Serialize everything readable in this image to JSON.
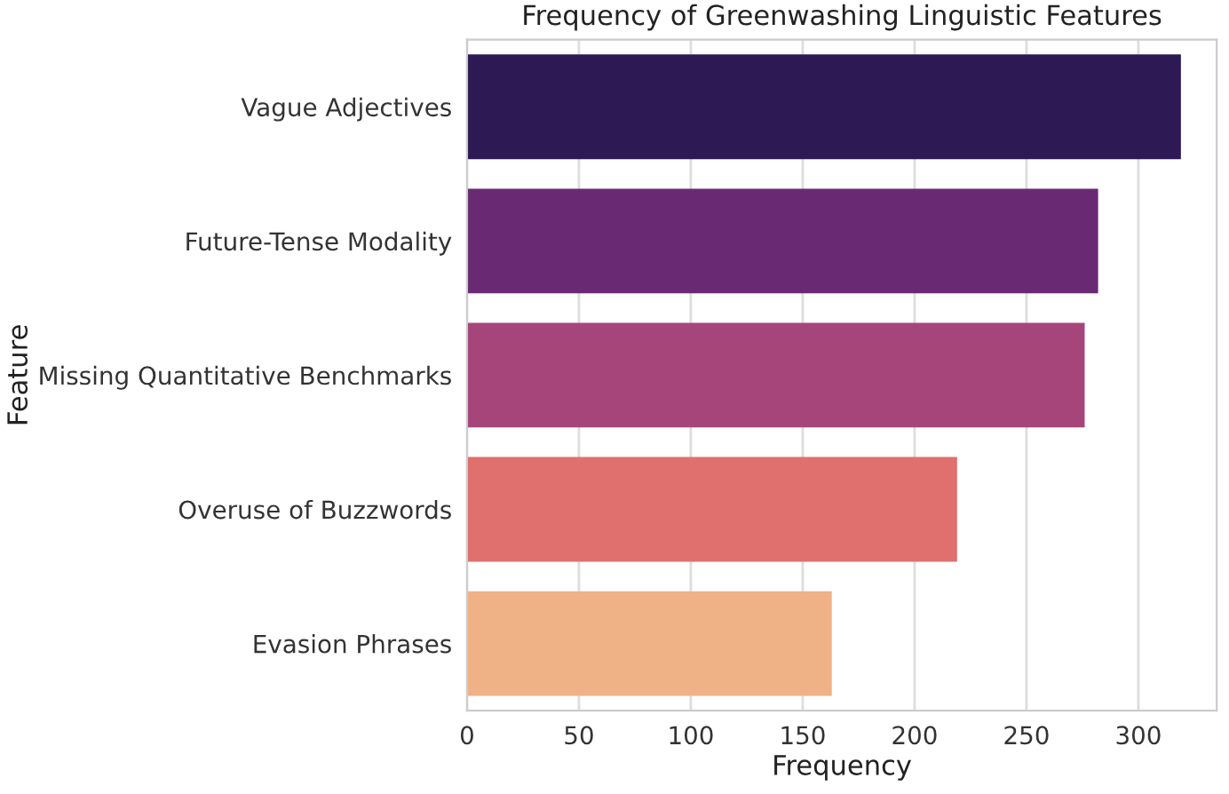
{
  "chart_data": {
    "type": "bar",
    "orientation": "horizontal",
    "title": "Frequency of Greenwashing Linguistic Features",
    "xlabel": "Frequency",
    "ylabel": "Feature",
    "categories": [
      "Vague Adjectives",
      "Future-Tense Modality",
      "Missing Quantitative Benchmarks",
      "Overuse of Buzzwords",
      "Evasion Phrases"
    ],
    "values": [
      319,
      282,
      276,
      219,
      163
    ],
    "colors": [
      "#2d1a55",
      "#6a2a73",
      "#a6457a",
      "#df706e",
      "#efb287"
    ],
    "xlim": [
      0,
      335
    ],
    "xticks": [
      0,
      50,
      100,
      150,
      200,
      250,
      300
    ],
    "grid": "x"
  }
}
